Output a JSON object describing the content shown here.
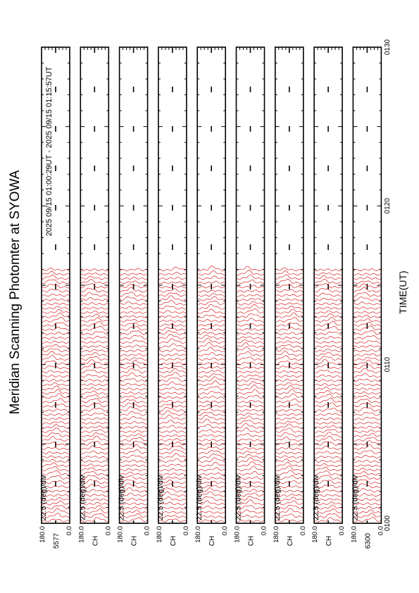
{
  "title": "Meridian Scanning Photomter at SYOWA",
  "time_range_label": "2025 09/15 01:00:29UT - 2025 09/15 01:15:57UT",
  "colors": {
    "trace": "#d40000",
    "frame": "#000000",
    "background": "#ffffff"
  },
  "chart_data": {
    "type": "line",
    "orientation": "rotated-90-ccw",
    "xlabel": "TIME(UT)",
    "x_ticks": [
      "0100",
      "0110",
      "0120",
      "0130"
    ],
    "x_range_minutes": [
      0,
      30
    ],
    "data_end_minute": 15.95,
    "panels": [
      {
        "scale": "22.5 (deg)/div",
        "y_top": "180.0",
        "y_bottom": "0.0",
        "channel": "5577"
      },
      {
        "scale": "22.5 (deg)/div",
        "y_top": "180.0",
        "y_bottom": "0.0",
        "channel": "CH"
      },
      {
        "scale": "22.5 (deg)/div",
        "y_top": "180.0",
        "y_bottom": "0.0",
        "channel": "CH"
      },
      {
        "scale": "22.5 (deg)/div",
        "y_top": "180.0",
        "y_bottom": "0.0",
        "channel": "CH"
      },
      {
        "scale": "22.5 (deg)/div",
        "y_top": "180.0",
        "y_bottom": "0.0",
        "channel": "CH"
      },
      {
        "scale": "22.5 (deg)/div",
        "y_top": "180.0",
        "y_bottom": "0.0",
        "channel": "CH"
      },
      {
        "scale": "22.5 (deg)/div",
        "y_top": "180.0",
        "y_bottom": "0.0",
        "channel": "CH"
      },
      {
        "scale": "22.5 (deg)/div",
        "y_top": "180.0",
        "y_bottom": "0.0",
        "channel": "CH"
      },
      {
        "scale": "22.5 (deg)/div",
        "y_top": "180.0",
        "y_bottom": "0.0",
        "channel": "6300"
      }
    ]
  }
}
